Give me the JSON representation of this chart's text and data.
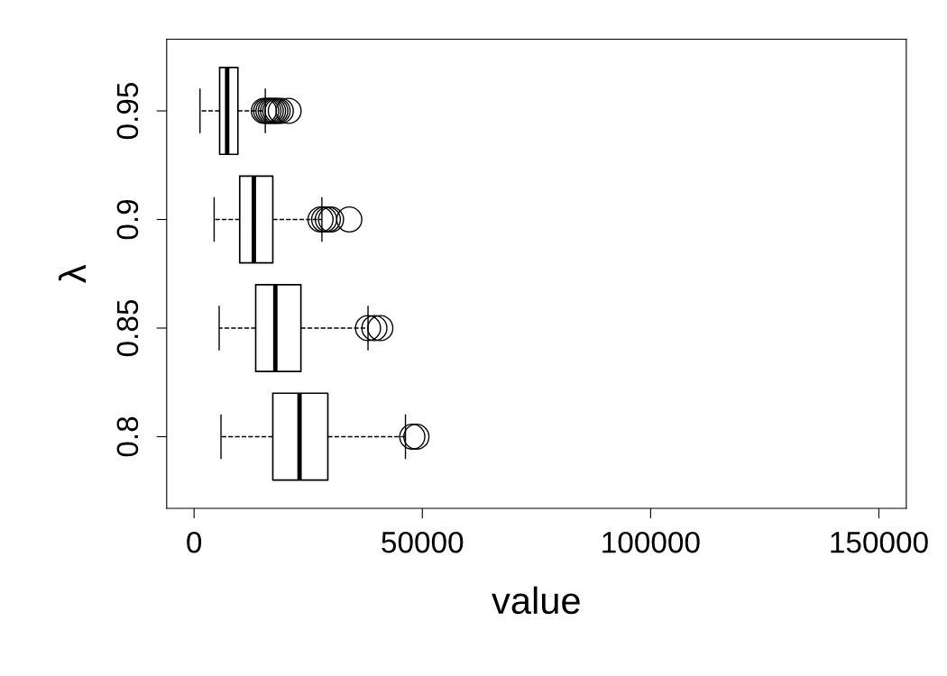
{
  "chart_data": {
    "type": "box",
    "orientation": "horizontal",
    "xlabel": "value",
    "ylabel": "λ",
    "categories": [
      "0.95",
      "0.9",
      "0.85",
      "0.8"
    ],
    "boxes": [
      {
        "low": 1300,
        "q1": 5600,
        "median": 7250,
        "q3": 9600,
        "high": 15600,
        "outliers": [
          15300,
          15800,
          16300,
          16800,
          17300,
          17800,
          18300,
          19000,
          20700
        ]
      },
      {
        "low": 4400,
        "q1": 10000,
        "median": 13100,
        "q3": 17250,
        "high": 28000,
        "outliers": [
          27700,
          28500,
          29300,
          30000,
          34000
        ]
      },
      {
        "low": 5500,
        "q1": 13500,
        "median": 17800,
        "q3": 23400,
        "high": 38100,
        "outliers": [
          38100,
          39500,
          40800
        ]
      },
      {
        "low": 5900,
        "q1": 17250,
        "median": 23100,
        "q3": 29300,
        "high": 46300,
        "outliers": [
          47800,
          48700
        ]
      }
    ],
    "xlim": [
      -6000,
      156000
    ],
    "xticks": [
      0,
      50000,
      100000,
      150000
    ],
    "grid": false,
    "line_style": "dashed",
    "marker": "circle"
  }
}
